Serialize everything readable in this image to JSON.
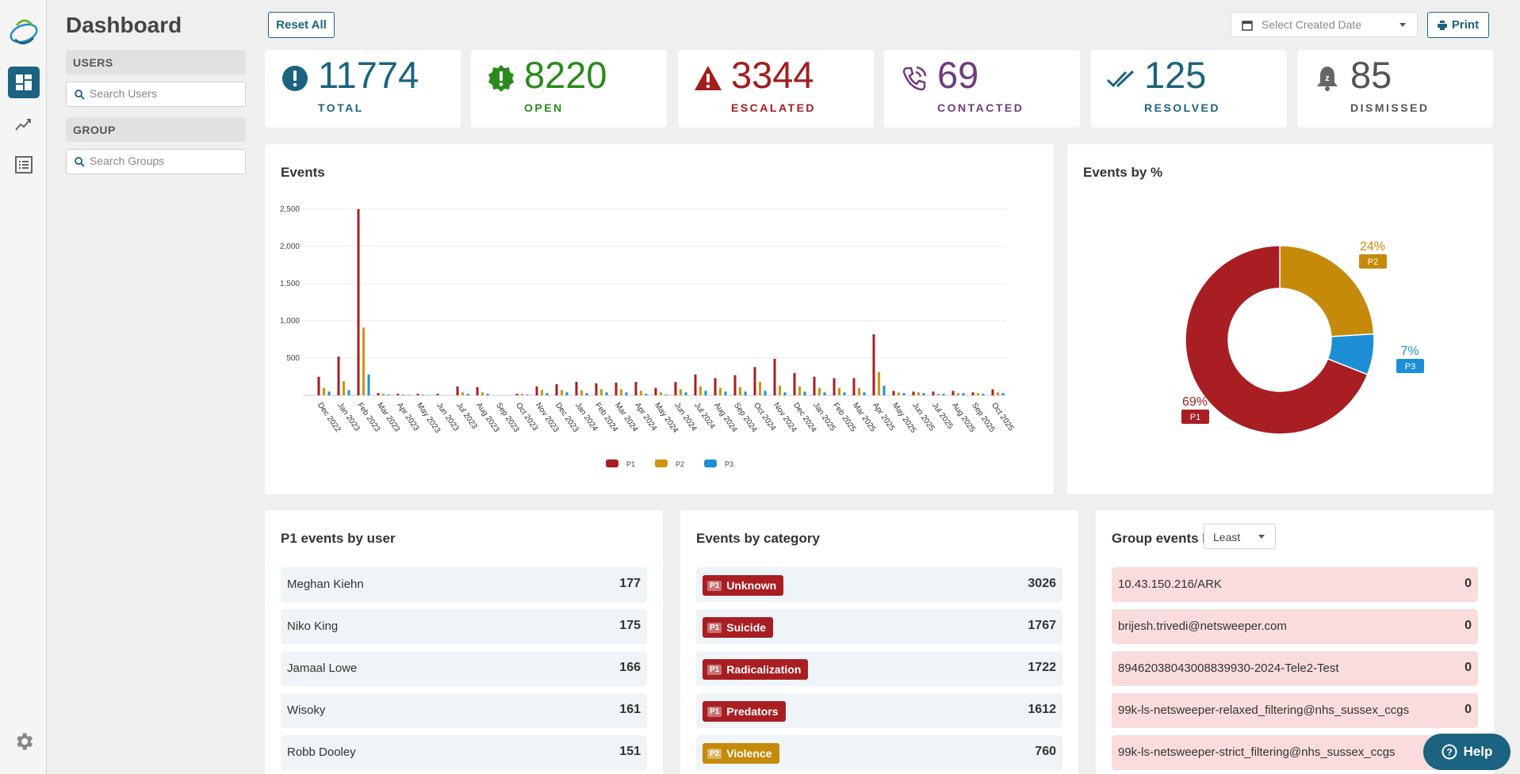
{
  "page": {
    "title": "Dashboard"
  },
  "filters": {
    "users": {
      "heading": "USERS",
      "placeholder": "Search Users"
    },
    "group": {
      "heading": "GROUP",
      "placeholder": "Search Groups"
    }
  },
  "toolbar": {
    "reset_label": "Reset All",
    "date_placeholder": "Select Created Date",
    "print_label": "Print"
  },
  "stats": [
    {
      "value": "11774",
      "label": "TOTAL",
      "color": "#1b6381",
      "icon": "exclamation-circle-icon"
    },
    {
      "value": "8220",
      "label": "OPEN",
      "color": "#2a8a1c",
      "icon": "alert-badge-icon"
    },
    {
      "value": "3344",
      "label": "ESCALATED",
      "color": "#a31d1d",
      "icon": "warning-triangle-icon"
    },
    {
      "value": "69",
      "label": "CONTACTED",
      "color": "#6e3a82",
      "icon": "phone-icon"
    },
    {
      "value": "125",
      "label": "RESOLVED",
      "color": "#1b6381",
      "icon": "double-check-icon"
    },
    {
      "value": "85",
      "label": "DISMISSED",
      "color": "#555555",
      "icon": "snooze-bell-icon"
    }
  ],
  "events_chart": {
    "title": "Events",
    "chart_data": {
      "type": "bar",
      "categories": [
        "Dec 2022",
        "Jan 2023",
        "Feb 2023",
        "Mar 2023",
        "Apr 2023",
        "May 2023",
        "Jun 2023",
        "Jul 2023",
        "Aug 2023",
        "Sep 2023",
        "Oct 2023",
        "Nov 2023",
        "Dec 2023",
        "Jan 2024",
        "Feb 2024",
        "Mar 2024",
        "Apr 2024",
        "May 2024",
        "Jun 2024",
        "Jul 2024",
        "Aug 2024",
        "Sep 2024",
        "Oct 2024",
        "Nov 2024",
        "Dec 2024",
        "Jan 2025",
        "Feb 2025",
        "Mar 2025",
        "Apr 2025",
        "May 2025",
        "Jun 2025",
        "Jul 2025",
        "Aug 2025",
        "Sep 2025",
        "Oct 2025"
      ],
      "series": [
        {
          "name": "P1",
          "color": "#a81e23",
          "values": [
            250,
            520,
            2500,
            30,
            20,
            20,
            20,
            120,
            110,
            0,
            20,
            120,
            150,
            180,
            160,
            170,
            180,
            100,
            180,
            280,
            230,
            270,
            380,
            490,
            300,
            250,
            230,
            230,
            820,
            60,
            50,
            50,
            60,
            40,
            80
          ]
        },
        {
          "name": "P2",
          "color": "#cf9410",
          "values": [
            100,
            190,
            910,
            20,
            10,
            10,
            0,
            40,
            40,
            0,
            20,
            70,
            70,
            70,
            80,
            80,
            60,
            40,
            80,
            120,
            100,
            110,
            180,
            130,
            120,
            100,
            100,
            100,
            310,
            40,
            40,
            20,
            30,
            30,
            40
          ]
        },
        {
          "name": "P3",
          "color": "#1e8fd6",
          "values": [
            50,
            70,
            280,
            10,
            5,
            5,
            0,
            20,
            20,
            0,
            10,
            30,
            40,
            30,
            40,
            40,
            20,
            10,
            40,
            60,
            50,
            50,
            60,
            40,
            50,
            40,
            40,
            40,
            130,
            30,
            30,
            20,
            30,
            20,
            30
          ]
        }
      ],
      "yticks": [
        "2,500",
        "2,000",
        "1,500",
        "1,000",
        "500"
      ],
      "ylim": [
        0,
        2500
      ],
      "legend": [
        "P1",
        "P2",
        "P3"
      ],
      "legend_position": "bottom-center"
    }
  },
  "donut_chart": {
    "title": "Events by %",
    "chart_data": {
      "type": "pie",
      "slices": [
        {
          "name": "P1",
          "value": 69,
          "label": "69%",
          "color": "#a81e23"
        },
        {
          "name": "P2",
          "value": 24,
          "label": "24%",
          "color": "#c68a0a"
        },
        {
          "name": "P3",
          "value": 7,
          "label": "7%",
          "color": "#1e8fd6"
        }
      ]
    }
  },
  "p1_by_user": {
    "title": "P1 events by user",
    "rows": [
      {
        "name": "Meghan Kiehn",
        "value": "177"
      },
      {
        "name": "Niko King",
        "value": "175"
      },
      {
        "name": "Jamaal Lowe",
        "value": "166"
      },
      {
        "name": "Wisoky",
        "value": "161"
      },
      {
        "name": "Robb Dooley",
        "value": "151"
      }
    ]
  },
  "by_category": {
    "title": "Events by category",
    "rows": [
      {
        "priority": "P1",
        "name": "Unknown",
        "value": "3026",
        "color": "#a81e23"
      },
      {
        "priority": "P1",
        "name": "Suicide",
        "value": "1767",
        "color": "#a81e23"
      },
      {
        "priority": "P1",
        "name": "Radicalization",
        "value": "1722",
        "color": "#a81e23"
      },
      {
        "priority": "P1",
        "name": "Predators",
        "value": "1612",
        "color": "#a81e23"
      },
      {
        "priority": "P2",
        "name": "Violence",
        "value": "760",
        "color": "#c68a0a"
      }
    ]
  },
  "group_events": {
    "title": "Group events by",
    "sort_value": "Least",
    "rows": [
      {
        "name": "10.43.150.216/ARK",
        "value": "0"
      },
      {
        "name": "brijesh.trivedi@netsweeper.com",
        "value": "0"
      },
      {
        "name": "89462038043008839930-2024-Tele2-Test",
        "value": "0"
      },
      {
        "name": "99k-ls-netsweeper-relaxed_filtering@nhs_sussex_ccgs",
        "value": "0"
      },
      {
        "name": "99k-ls-netsweeper-strict_filtering@nhs_sussex_ccgs",
        "value": "0"
      }
    ]
  },
  "help": {
    "label": "Help"
  }
}
